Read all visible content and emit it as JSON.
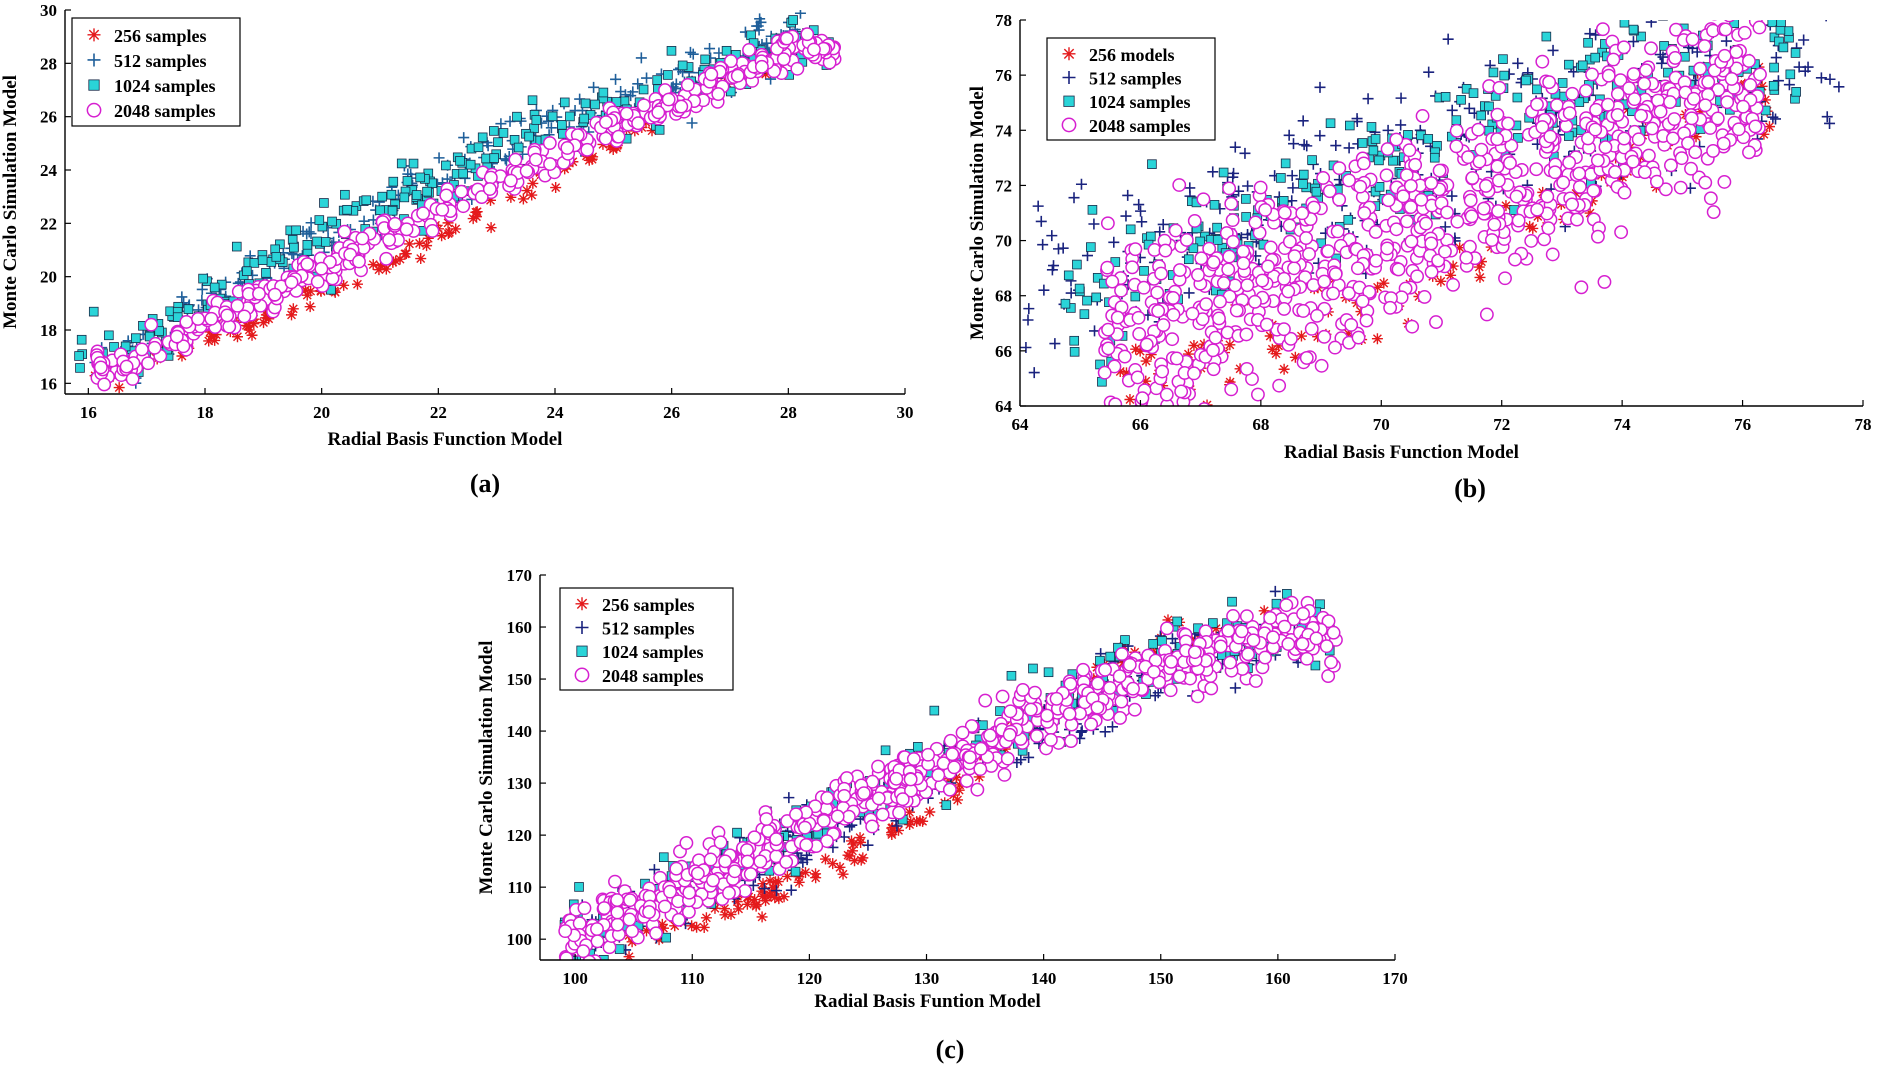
{
  "chart_data": [
    {
      "type": "scatter",
      "panel_label": "(a)",
      "xlabel": "Radial Basis Function Model",
      "ylabel": "Monte Carlo Simulation Model",
      "xlim": [
        15.6,
        30
      ],
      "ylim": [
        15.6,
        30
      ],
      "xticks": [
        "16",
        "18",
        "20",
        "22",
        "24",
        "26",
        "28",
        "30"
      ],
      "yticks": [
        "16",
        "18",
        "20",
        "22",
        "24",
        "26",
        "28",
        "30"
      ],
      "legend_position": "top-left",
      "series": [
        {
          "name": "256 samples",
          "marker": "asterisk",
          "color": "#e41a1c",
          "range": [
            16.1,
            28.6
          ],
          "x": [
            16.5,
            17.5,
            19,
            21,
            23,
            25,
            27,
            28
          ],
          "y": [
            16.4,
            17.1,
            18.4,
            20.4,
            22.6,
            25.1,
            27.3,
            28.5
          ],
          "spread": 0.25,
          "bias": 0.05,
          "n": 170
        },
        {
          "name": "512 samples",
          "marker": "plus",
          "color": "#1f5f9a",
          "range": [
            16.1,
            28.5
          ],
          "x": [
            16.5,
            17.5,
            19,
            21,
            23,
            25,
            27,
            28
          ],
          "y": [
            16.9,
            18.2,
            20.2,
            22.5,
            24.7,
            26.4,
            27.9,
            28.7
          ],
          "spread": 0.55,
          "bias": 0,
          "n": 300
        },
        {
          "name": "1024 samples",
          "marker": "square",
          "color": "#2ad4d8",
          "range": [
            15.8,
            28.7
          ],
          "x": [
            16.5,
            17.5,
            19,
            21,
            23,
            25,
            27,
            28
          ],
          "y": [
            16.9,
            18.3,
            20.3,
            22.5,
            24.6,
            26.3,
            27.9,
            28.7
          ],
          "spread": 0.55,
          "bias": 0,
          "n": 280
        },
        {
          "name": "2048 samples",
          "marker": "circle",
          "color": "#d61fd0",
          "range": [
            16.1,
            28.8
          ],
          "x": [
            16.5,
            17.5,
            19,
            21,
            23,
            25,
            27,
            28
          ],
          "y": [
            16.6,
            17.6,
            19.3,
            21.5,
            23.6,
            25.6,
            27.5,
            28.5
          ],
          "spread": 0.3,
          "bias": 0,
          "n": 420
        }
      ]
    },
    {
      "type": "scatter",
      "panel_label": "(b)",
      "xlabel": "Radial Basis Function Model",
      "ylabel": "Monte Carlo Simulation Model",
      "xlim": [
        64,
        78
      ],
      "ylim": [
        64,
        78
      ],
      "xticks": [
        "64",
        "66",
        "68",
        "70",
        "72",
        "74",
        "76",
        "78"
      ],
      "yticks": [
        "64",
        "66",
        "68",
        "70",
        "72",
        "74",
        "76",
        "78"
      ],
      "legend_position": "top-left",
      "series": [
        {
          "name": "256 models",
          "marker": "asterisk",
          "color": "#e41a1c",
          "range": [
            65.5,
            76.5
          ],
          "x": [
            66,
            68,
            70,
            72,
            74,
            76
          ],
          "y": [
            65.2,
            66.3,
            68,
            70.2,
            72.8,
            75.2
          ],
          "spread": 0.8,
          "bias": 0,
          "n": 130
        },
        {
          "name": "512 samples",
          "marker": "plus",
          "color": "#1a237e",
          "range": [
            64.0,
            77.6
          ],
          "x": [
            64,
            66,
            68,
            70,
            72,
            74,
            76
          ],
          "y": [
            68.3,
            69.6,
            71.2,
            72.4,
            73.8,
            75.1,
            76.2
          ],
          "spread": 1.5,
          "bias": 0,
          "n": 300
        },
        {
          "name": "1024 samples",
          "marker": "square",
          "color": "#2ad4d8",
          "range": [
            64.7,
            76.9
          ],
          "x": [
            65,
            66,
            68,
            70,
            72,
            74,
            76
          ],
          "y": [
            67.6,
            68.8,
            70.8,
            72.6,
            74.4,
            75.9,
            76.6
          ],
          "spread": 1.3,
          "bias": 0,
          "n": 300
        },
        {
          "name": "2048 samples",
          "marker": "circle",
          "color": "#d61fd0",
          "range": [
            65.4,
            76.3
          ],
          "x": [
            66,
            68,
            70,
            72,
            74,
            76
          ],
          "y": [
            66.5,
            68.3,
            70.2,
            72.1,
            74,
            75.8
          ],
          "spread": 1.7,
          "bias": 0,
          "n": 800
        }
      ]
    },
    {
      "type": "scatter",
      "panel_label": "(c)",
      "xlabel": "Radial Basis Funtion Model",
      "ylabel": "Monte Carlo Simulation Model",
      "xlim": [
        97,
        170
      ],
      "ylim": [
        96,
        170
      ],
      "xticks": [
        "100",
        "110",
        "120",
        "130",
        "140",
        "150",
        "160",
        "170"
      ],
      "yticks": [
        "100",
        "110",
        "120",
        "130",
        "140",
        "150",
        "160",
        "170"
      ],
      "legend_position": "top-left",
      "series": [
        {
          "name": "256 samples",
          "marker": "asterisk",
          "color": "#e41a1c",
          "range": [
            104,
            162
          ],
          "x": [
            105,
            110,
            120,
            130,
            140,
            150,
            160
          ],
          "y": [
            100,
            103.5,
            112,
            125,
            144,
            157,
            160
          ],
          "spread": 1.5,
          "bias": 0,
          "n": 170
        },
        {
          "name": "512 samples",
          "marker": "plus",
          "color": "#1a237e",
          "range": [
            100,
            163
          ],
          "x": [
            100,
            110,
            120,
            130,
            140,
            150,
            160
          ],
          "y": [
            101,
            110,
            120,
            130,
            141,
            152,
            158
          ],
          "spread": 3.3,
          "bias": 0,
          "n": 300
        },
        {
          "name": "1024 samples",
          "marker": "square",
          "color": "#2ad4d8",
          "range": [
            99,
            165
          ],
          "x": [
            100,
            110,
            120,
            130,
            140,
            150,
            160,
            165
          ],
          "y": [
            101,
            111,
            122,
            133,
            144,
            153,
            159,
            158
          ],
          "spread": 3.2,
          "bias": 0,
          "n": 280
        },
        {
          "name": "2048 samples",
          "marker": "circle",
          "color": "#d61fd0",
          "range": [
            98,
            165
          ],
          "x": [
            98,
            110,
            120,
            130,
            140,
            150,
            160,
            165
          ],
          "y": [
            99,
            111,
            121,
            132,
            143,
            152,
            158,
            158
          ],
          "spread": 3.0,
          "bias": 0,
          "n": 650
        }
      ]
    }
  ]
}
